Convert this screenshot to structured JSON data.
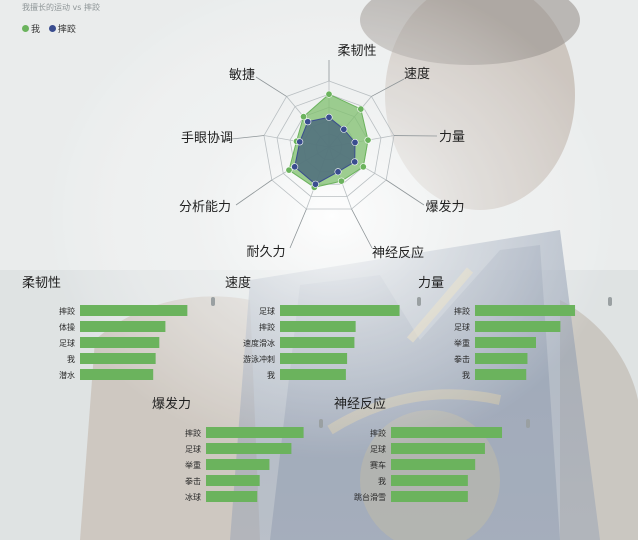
{
  "header": {
    "subtitle": "我擅长的运动 vs 摔跤"
  },
  "legend": [
    {
      "name": "我",
      "color": "#6bb35d"
    },
    {
      "name": "摔跤",
      "color": "#3a4d8f"
    }
  ],
  "colors": {
    "me": "#6bb35d",
    "wrestling": "#3a4d8f",
    "bar": "#6bb35d",
    "radar_fill_me": "#7fbf6e",
    "radar_fill_wrestling": "#4e6b7d"
  },
  "chart_data": [
    {
      "type": "radar",
      "indicators": [
        "柔韧性",
        "速度",
        "力量",
        "爆发力",
        "神经反应",
        "耐久力",
        "分析能力",
        "手眼协调",
        "敏捷"
      ],
      "max": 100,
      "series": [
        {
          "name": "我",
          "values": [
            80,
            75,
            60,
            60,
            55,
            65,
            70,
            50,
            60
          ]
        },
        {
          "name": "摔跤",
          "values": [
            45,
            35,
            40,
            45,
            40,
            60,
            60,
            45,
            50
          ]
        }
      ]
    },
    {
      "type": "bar",
      "orientation": "horizontal",
      "title": "柔韧性",
      "categories": [
        "摔跤",
        "体操",
        "足球",
        "我",
        "潜水"
      ],
      "values": [
        88,
        70,
        65,
        62,
        60
      ],
      "xlim": [
        0,
        100
      ]
    },
    {
      "type": "bar",
      "orientation": "horizontal",
      "title": "速度",
      "categories": [
        "足球",
        "摔跤",
        "速度滑冰",
        "游泳冲刺",
        "我"
      ],
      "values": [
        98,
        62,
        61,
        55,
        54
      ],
      "xlim": [
        0,
        100
      ]
    },
    {
      "type": "bar",
      "orientation": "horizontal",
      "title": "力量",
      "categories": [
        "摔跤",
        "足球",
        "举重",
        "拳击",
        "我"
      ],
      "values": [
        82,
        70,
        50,
        43,
        42
      ],
      "xlim": [
        0,
        100
      ]
    },
    {
      "type": "bar",
      "orientation": "horizontal",
      "title": "爆发力",
      "categories": [
        "摔跤",
        "足球",
        "举重",
        "拳击",
        "冰球"
      ],
      "values": [
        80,
        70,
        52,
        44,
        42
      ],
      "xlim": [
        0,
        100
      ]
    },
    {
      "type": "bar",
      "orientation": "horizontal",
      "title": "神经反应",
      "categories": [
        "摔跤",
        "足球",
        "赛车",
        "我",
        "跳台滑雪"
      ],
      "values": [
        91,
        77,
        69,
        63,
        63
      ],
      "xlim": [
        0,
        100
      ]
    }
  ]
}
